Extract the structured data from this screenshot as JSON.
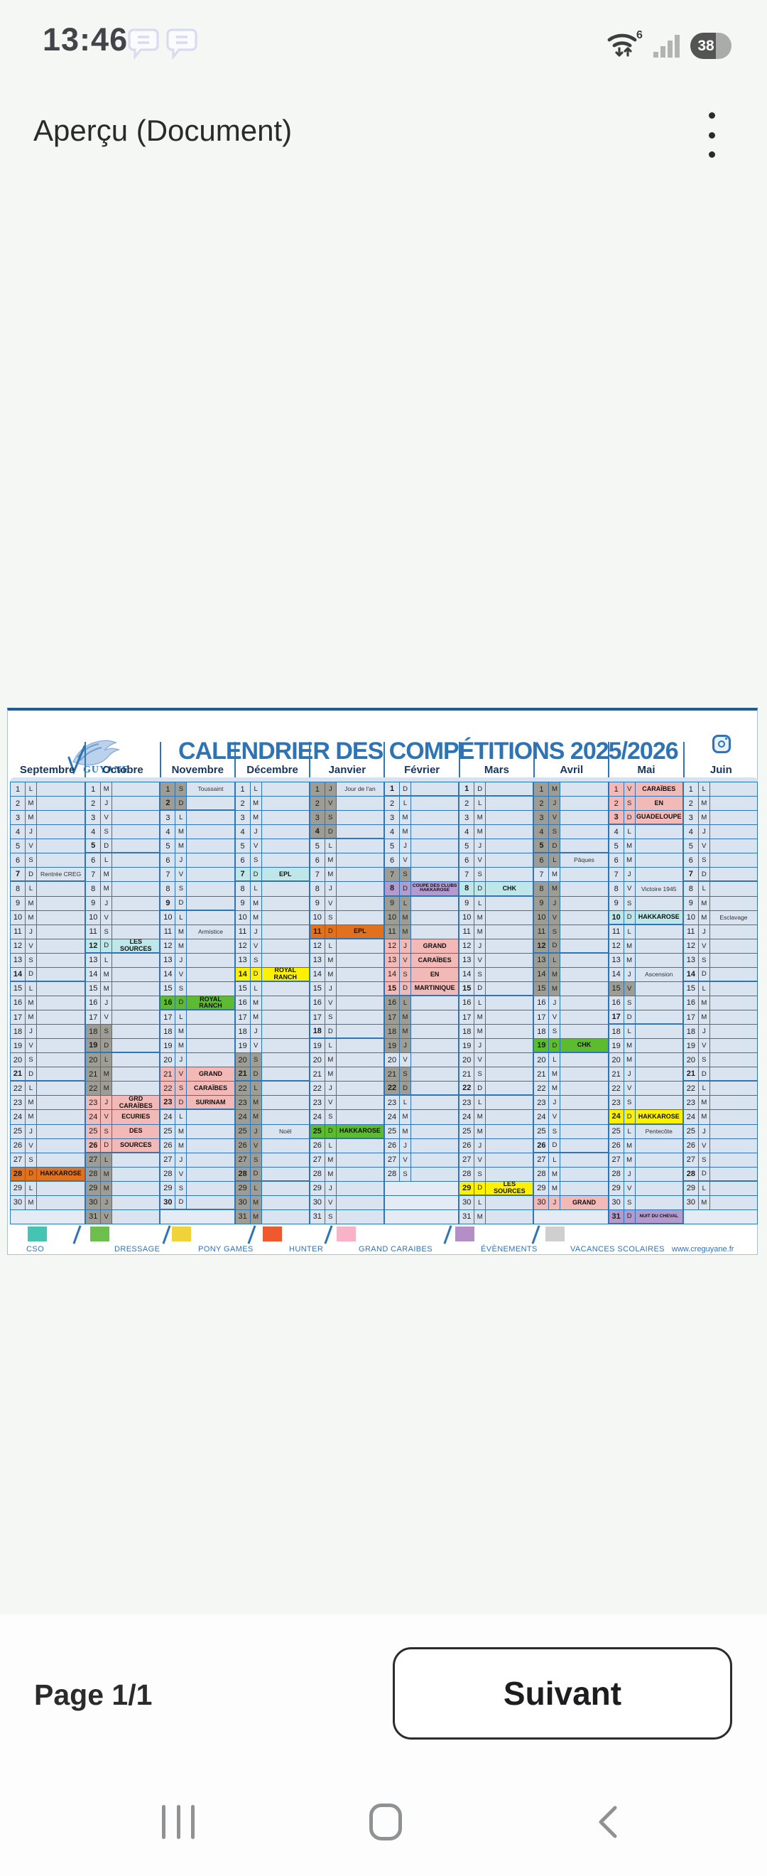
{
  "status_bar": {
    "time": "13:46",
    "battery_percent": "38",
    "notification_icons": [
      "message-bubble",
      "message-bubble"
    ],
    "right_icons": [
      "wifi-6",
      "signal-bars",
      "battery"
    ]
  },
  "app_bar": {
    "title": "Aperçu (Document)",
    "menu_icon": "kebab-menu"
  },
  "document": {
    "logo_text": "GUYANE",
    "title": "CALENDRIER DES COMPÉTITIONS 2025/2026",
    "website": "www.creguyane.fr",
    "day_letters": [
      "L",
      "M",
      "M",
      "J",
      "V",
      "S",
      "D"
    ],
    "event_colors": {
      "orange": "#e2711d",
      "green": "#5cbb2f",
      "yellow": "#fdf100",
      "cyan": "#bfe7e9",
      "pink": "#f2b9b6",
      "purple": "#b49bcf"
    },
    "ui_colors": {
      "grid_blue": "#2e75b6",
      "cell_blue": "#dae3f0",
      "vacation_gray": "#9d9d95",
      "title_blue": "#2e74b5",
      "month_navy": "#17365d"
    },
    "months": [
      {
        "name": "Septembre",
        "days": 30,
        "start": 0,
        "vacation": [],
        "events": [
          {
            "day": 7,
            "label": "Rentrée CREG",
            "color": "plain"
          },
          {
            "day": 28,
            "label": "HAKKAROSE",
            "color": "orange"
          }
        ]
      },
      {
        "name": "Octobre",
        "days": 31,
        "start": 2,
        "vacation": [
          18,
          19,
          20,
          21,
          22,
          23,
          24,
          25,
          26,
          27,
          28,
          29,
          30,
          31
        ],
        "events": [
          {
            "day": 12,
            "label": "LES SOURCES",
            "color": "cyan"
          },
          {
            "day": 23,
            "label": "GRD CARAÏBES",
            "color": "pink"
          },
          {
            "day": 24,
            "label": "ECURIES",
            "color": "pink"
          },
          {
            "day": 25,
            "label": "DES",
            "color": "pink"
          },
          {
            "day": 26,
            "label": "SOURCES",
            "color": "pink"
          }
        ]
      },
      {
        "name": "Novembre",
        "days": 30,
        "start": 5,
        "vacation": [
          1,
          2
        ],
        "events": [
          {
            "day": 1,
            "label": "Toussaint",
            "color": "plain"
          },
          {
            "day": 11,
            "label": "Armistice",
            "color": "plain"
          },
          {
            "day": 16,
            "label": "ROYAL RANCH",
            "color": "green"
          },
          {
            "day": 21,
            "label": "GRAND",
            "color": "pink"
          },
          {
            "day": 22,
            "label": "CARAÏBES",
            "color": "pink"
          },
          {
            "day": 23,
            "label": "SURINAM",
            "color": "pink"
          }
        ]
      },
      {
        "name": "Décembre",
        "days": 31,
        "start": 0,
        "vacation": [
          20,
          21,
          22,
          23,
          24,
          25,
          26,
          27,
          28,
          29,
          30,
          31
        ],
        "events": [
          {
            "day": 7,
            "label": "EPL",
            "color": "cyan"
          },
          {
            "day": 14,
            "label": "ROYAL RANCH",
            "color": "yellow"
          },
          {
            "day": 25,
            "label": "Noël",
            "color": "plain"
          }
        ]
      },
      {
        "name": "Janvier",
        "days": 31,
        "start": 3,
        "vacation": [
          1,
          2,
          3,
          4
        ],
        "events": [
          {
            "day": 1,
            "label": "Jour de l'an",
            "color": "plain"
          },
          {
            "day": 11,
            "label": "EPL",
            "color": "orange"
          },
          {
            "day": 25,
            "label": "HAKKAROSE",
            "color": "green"
          }
        ]
      },
      {
        "name": "Février",
        "days": 28,
        "start": 6,
        "vacation": [
          7,
          9,
          10,
          11,
          16,
          17,
          18,
          19,
          21,
          22
        ],
        "events": [
          {
            "day": 8,
            "label": "COUPE DES CLUBS HAKKAROSE",
            "color": "purple"
          },
          {
            "day": 12,
            "label": "GRAND",
            "color": "pink"
          },
          {
            "day": 13,
            "label": "CARAÏBES",
            "color": "pink"
          },
          {
            "day": 14,
            "label": "EN",
            "color": "pink"
          },
          {
            "day": 15,
            "label": "MARTINIQUE",
            "color": "pink"
          }
        ]
      },
      {
        "name": "Mars",
        "days": 31,
        "start": 6,
        "vacation": [],
        "events": [
          {
            "day": 8,
            "label": "CHK",
            "color": "cyan"
          },
          {
            "day": 29,
            "label": "LES SOURCES",
            "color": "yellow"
          }
        ]
      },
      {
        "name": "Avril",
        "days": 30,
        "start": 2,
        "vacation": [
          1,
          2,
          3,
          4,
          5,
          6,
          8,
          9,
          10,
          11,
          12,
          13,
          14,
          15
        ],
        "events": [
          {
            "day": 6,
            "label": "Pâques",
            "color": "plain"
          },
          {
            "day": 19,
            "label": "CHK",
            "color": "green"
          },
          {
            "day": 30,
            "label": "GRAND",
            "color": "pink"
          }
        ]
      },
      {
        "name": "Mai",
        "days": 31,
        "start": 4,
        "vacation": [
          15
        ],
        "events": [
          {
            "day": 1,
            "label": "CARAÏBES",
            "color": "pink"
          },
          {
            "day": 2,
            "label": "EN",
            "color": "pink"
          },
          {
            "day": 3,
            "label": "GUADELOUPE",
            "color": "pink"
          },
          {
            "day": 8,
            "label": "Victoire 1945",
            "color": "plain"
          },
          {
            "day": 10,
            "label": "HAKKAROSE",
            "color": "cyan"
          },
          {
            "day": 14,
            "label": "Ascension",
            "color": "plain"
          },
          {
            "day": 24,
            "label": "HAKKAROSE",
            "color": "yellow"
          },
          {
            "day": 25,
            "label": "Pentecôte",
            "color": "plain"
          },
          {
            "day": 31,
            "label": "NUIT DU CHEVAL",
            "color": "purple"
          }
        ]
      },
      {
        "name": "Juin",
        "days": 30,
        "start": 0,
        "vacation": [],
        "events": [
          {
            "day": 10,
            "label": "Esclavage",
            "color": "plain"
          }
        ]
      }
    ],
    "legend": [
      {
        "label": "CSO",
        "color": "#45c4b4"
      },
      {
        "label": "DRESSAGE",
        "color": "#6cbf4a"
      },
      {
        "label": "PONY GAMES",
        "color": "#f0d23a"
      },
      {
        "label": "HUNTER",
        "color": "#f0592e"
      },
      {
        "label": "GRAND CARAIBES",
        "color": "#f8b3c8"
      },
      {
        "label": "ÉVÈNEMENTS",
        "color": "#b48ec6"
      },
      {
        "label": "VACANCES SCOLAIRES",
        "color": "#cfcfcf"
      }
    ]
  },
  "footer": {
    "page_label": "Page 1/1",
    "next_label": "Suivant"
  },
  "nav_bar": {
    "icons": [
      "recents",
      "home",
      "back"
    ]
  }
}
